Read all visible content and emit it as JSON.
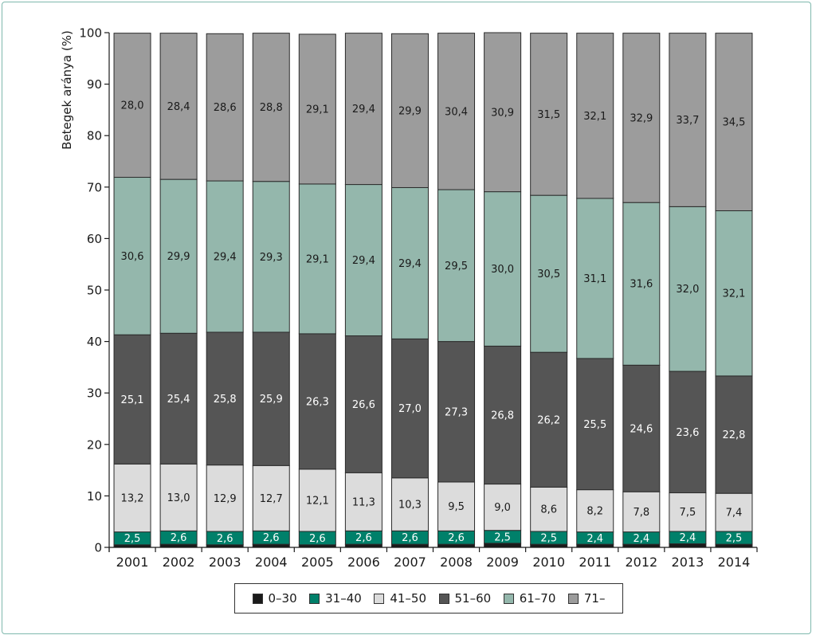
{
  "chart_data": {
    "type": "bar",
    "stacked": true,
    "title": "",
    "xlabel": "",
    "ylabel": "Betegek aránya (%)",
    "ylim": [
      0,
      100
    ],
    "yticks": [
      0,
      10,
      20,
      30,
      40,
      50,
      60,
      70,
      80,
      90,
      100
    ],
    "categories": [
      "2001",
      "2002",
      "2003",
      "2004",
      "2005",
      "2006",
      "2007",
      "2008",
      "2009",
      "2010",
      "2011",
      "2012",
      "2013",
      "2014"
    ],
    "series": [
      {
        "name": "0–30",
        "color": "#1a1a1a",
        "values": [
          0.5,
          0.6,
          0.5,
          0.6,
          0.5,
          0.6,
          0.6,
          0.6,
          0.8,
          0.6,
          0.6,
          0.6,
          0.7,
          0.6
        ],
        "labels": [
          "",
          "",
          "",
          "",
          "",
          "",
          "",
          "",
          "",
          "",
          "",
          "",
          "",
          ""
        ],
        "label_color": "#000000"
      },
      {
        "name": "31–40",
        "color": "#00806a",
        "values": [
          2.5,
          2.6,
          2.6,
          2.6,
          2.6,
          2.6,
          2.6,
          2.6,
          2.5,
          2.5,
          2.4,
          2.4,
          2.4,
          2.5
        ],
        "labels": [
          "2,5",
          "2,6",
          "2,6",
          "2,6",
          "2,6",
          "2,6",
          "2,6",
          "2,6",
          "2,5",
          "2,5",
          "2,4",
          "2,4",
          "2,4",
          "2,5"
        ],
        "label_color": "#ffffff"
      },
      {
        "name": "41–50",
        "color": "#dcdcdc",
        "values": [
          13.2,
          13.0,
          12.9,
          12.7,
          12.1,
          11.3,
          10.3,
          9.5,
          9.0,
          8.6,
          8.2,
          7.8,
          7.5,
          7.4
        ],
        "labels": [
          "13,2",
          "13,0",
          "12,9",
          "12,7",
          "12,1",
          "11,3",
          "10,3",
          "9,5",
          "9,0",
          "8,6",
          "8,2",
          "7,8",
          "7,5",
          "7,4"
        ],
        "label_color": "#1a1a1a"
      },
      {
        "name": "51–60",
        "color": "#555555",
        "values": [
          25.1,
          25.4,
          25.8,
          25.9,
          26.3,
          26.6,
          27.0,
          27.3,
          26.8,
          26.2,
          25.5,
          24.6,
          23.6,
          22.8
        ],
        "labels": [
          "25,1",
          "25,4",
          "25,8",
          "25,9",
          "26,3",
          "26,6",
          "27,0",
          "27,3",
          "26,8",
          "26,2",
          "25,5",
          "24,6",
          "23,6",
          "22,8"
        ],
        "label_color": "#ffffff"
      },
      {
        "name": "61–70",
        "color": "#94b7ac",
        "values": [
          30.6,
          29.9,
          29.4,
          29.3,
          29.1,
          29.4,
          29.4,
          29.5,
          30.0,
          30.5,
          31.1,
          31.6,
          32.0,
          32.1
        ],
        "labels": [
          "30,6",
          "29,9",
          "29,4",
          "29,3",
          "29,1",
          "29,4",
          "29,4",
          "29,5",
          "30,0",
          "30,5",
          "31,1",
          "31,6",
          "32,0",
          "32,1"
        ],
        "label_color": "#1a1a1a"
      },
      {
        "name": "71–",
        "color": "#9c9c9c",
        "values": [
          28.0,
          28.4,
          28.6,
          28.8,
          29.1,
          29.4,
          29.9,
          30.4,
          30.9,
          31.5,
          32.1,
          32.9,
          33.7,
          34.5
        ],
        "labels": [
          "28,0",
          "28,4",
          "28,6",
          "28,8",
          "29,1",
          "29,4",
          "29,9",
          "30,4",
          "30,9",
          "31,5",
          "32,1",
          "32,9",
          "33,7",
          "34,5"
        ],
        "label_color": "#1a1a1a"
      }
    ],
    "legend_position": "bottom"
  }
}
